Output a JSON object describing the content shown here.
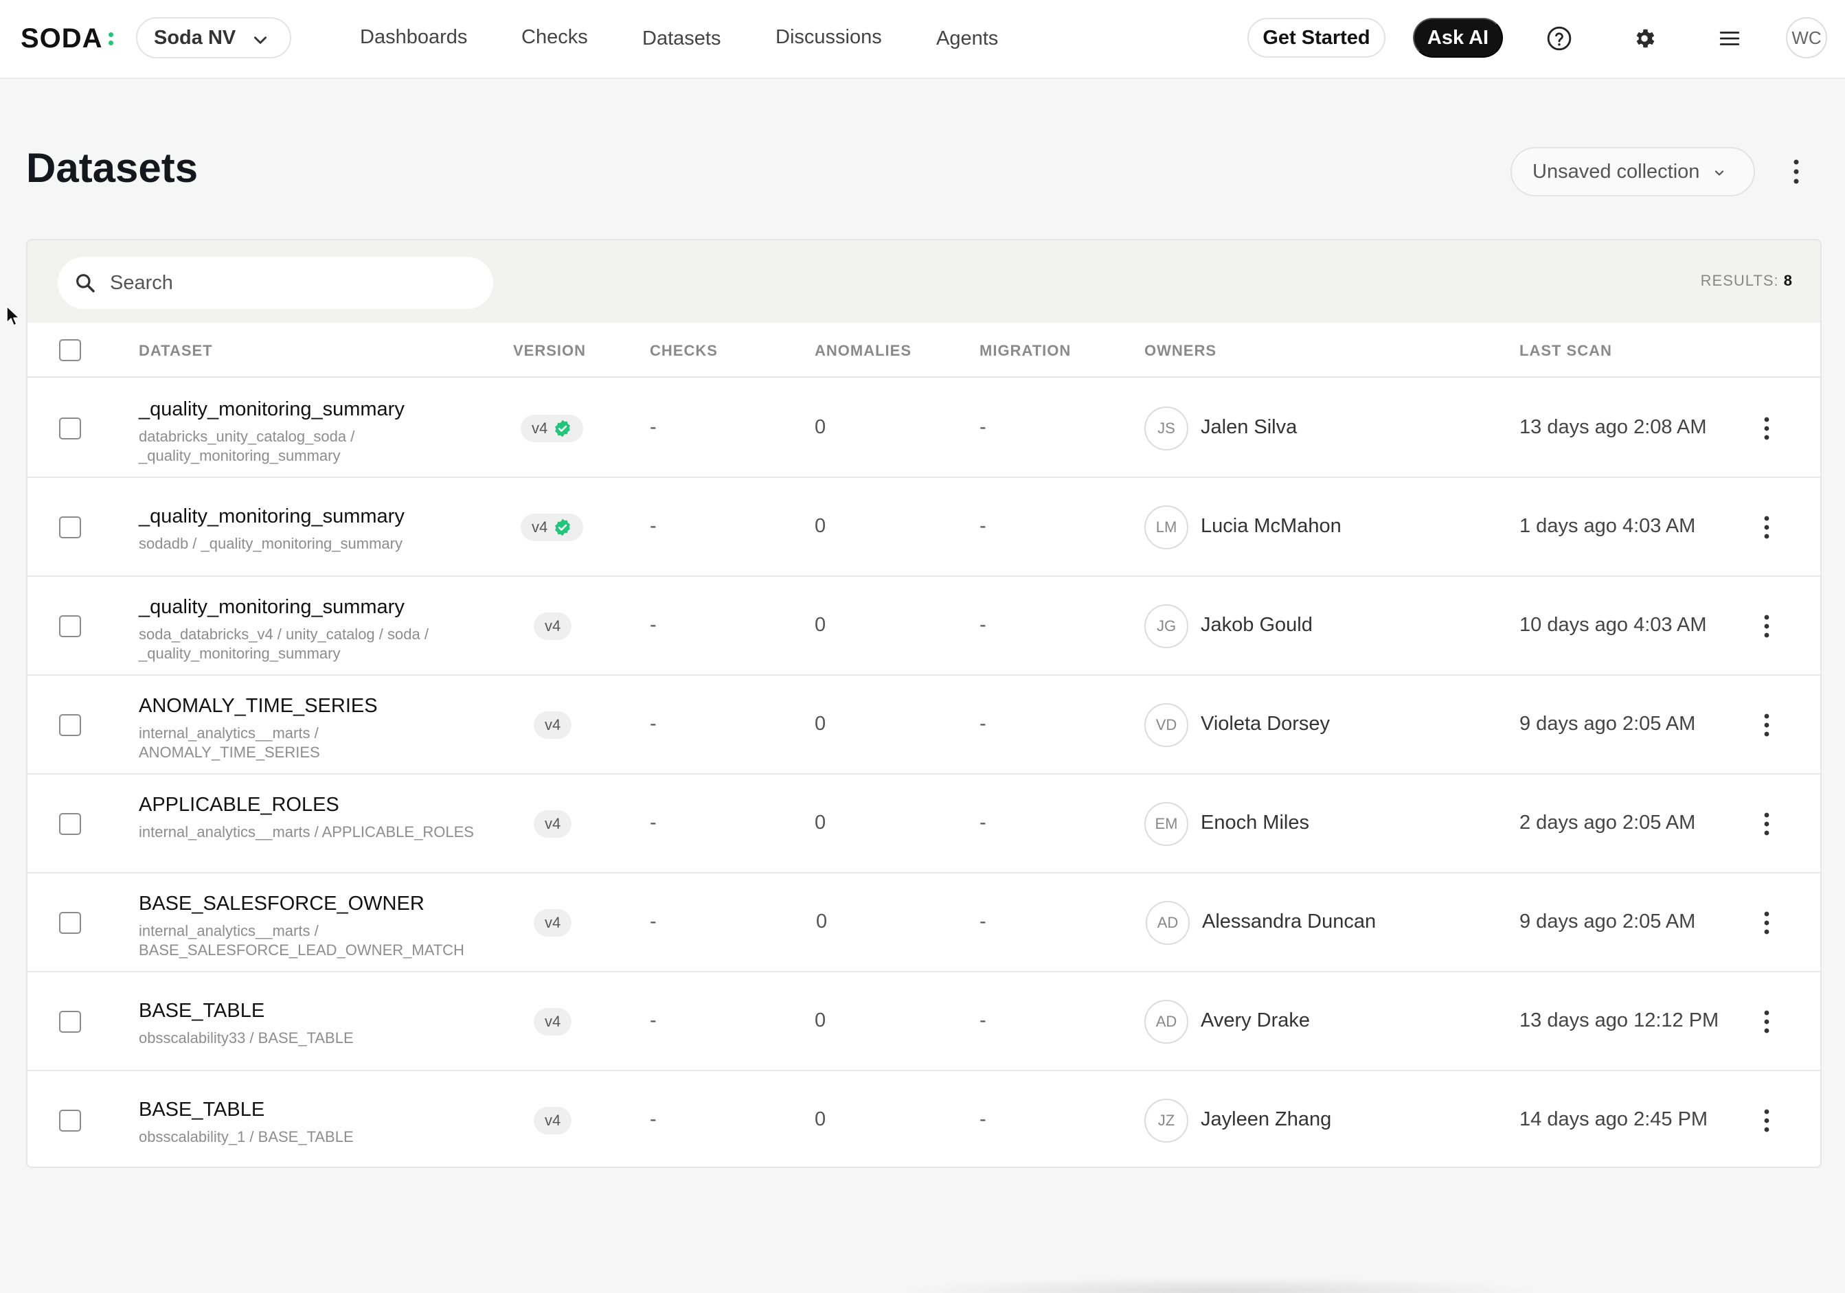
{
  "app": {
    "logo_text": "SODA",
    "org_name": "Soda NV",
    "brand_color": "#22c57a"
  },
  "nav": {
    "items": [
      {
        "label": "Dashboards"
      },
      {
        "label": "Checks"
      },
      {
        "label": "Datasets"
      },
      {
        "label": "Discussions"
      },
      {
        "label": "Agents"
      }
    ],
    "get_started": "Get Started",
    "ask_ai": "Ask AI",
    "user_initials": "WC",
    "icons": [
      "help-circle-icon",
      "gear-icon",
      "hamburger-menu-icon"
    ]
  },
  "page": {
    "title": "Datasets",
    "collection_label": "Unsaved collection"
  },
  "filter": {
    "search_placeholder": "Search",
    "results_label": "RESULTS:",
    "results_count": "8"
  },
  "table": {
    "headers": {
      "dataset": "DATASET",
      "version": "VERSION",
      "checks": "CHECKS",
      "anomalies": "ANOMALIES",
      "migration": "MIGRATION",
      "owners": "OWNERS",
      "last_scan": "LAST SCAN"
    },
    "rows": [
      {
        "name": "_quality_monitoring_summary",
        "path": "databricks_unity_catalog_soda / _quality_monitoring_summary",
        "version": "v4",
        "verified": true,
        "checks": "-",
        "anomalies": "0",
        "migration": "-",
        "owner_initials": "JS",
        "owner_name": "Jalen Silva",
        "last_scan": "13 days ago 2:08 AM"
      },
      {
        "name": "_quality_monitoring_summary",
        "path": "sodadb / _quality_monitoring_summary",
        "version": "v4",
        "verified": true,
        "checks": "-",
        "anomalies": "0",
        "migration": "-",
        "owner_initials": "LM",
        "owner_name": "Lucia McMahon",
        "last_scan": "1 days ago 4:03 AM"
      },
      {
        "name": "_quality_monitoring_summary",
        "path": "soda_databricks_v4 / unity_catalog / soda / _quality_monitoring_summary",
        "version": "v4",
        "verified": false,
        "checks": "-",
        "anomalies": "0",
        "migration": "-",
        "owner_initials": "JG",
        "owner_name": "Jakob Gould",
        "last_scan": "10 days ago 4:03 AM"
      },
      {
        "name": "ANOMALY_TIME_SERIES",
        "path": "internal_analytics__marts / ANOMALY_TIME_SERIES",
        "version": "v4",
        "verified": false,
        "checks": "-",
        "anomalies": "0",
        "migration": "-",
        "owner_initials": "VD",
        "owner_name": "Violeta Dorsey",
        "last_scan": "9 days ago 2:05 AM"
      },
      {
        "name": "APPLICABLE_ROLES",
        "path": "internal_analytics__marts / APPLICABLE_ROLES",
        "version": "v4",
        "verified": false,
        "checks": "-",
        "anomalies": "0",
        "migration": "-",
        "owner_initials": "EM",
        "owner_name": "Enoch Miles",
        "last_scan": "2 days ago 2:05 AM"
      },
      {
        "name": "BASE_SALESFORCE_OWNER",
        "path": "internal_analytics__marts / BASE_SALESFORCE_LEAD_OWNER_MATCH",
        "version": "v4",
        "verified": false,
        "checks": "-",
        "anomalies": "0",
        "migration": "-",
        "owner_initials": "AD",
        "owner_name": "Alessandra Duncan",
        "last_scan": "9 days ago 2:05 AM"
      },
      {
        "name": "BASE_TABLE",
        "path": "obsscalability33 / BASE_TABLE",
        "version": "v4",
        "verified": false,
        "checks": "-",
        "anomalies": "0",
        "migration": "-",
        "owner_initials": "AD",
        "owner_name": "Avery Drake",
        "last_scan": "13 days ago 12:12 PM"
      },
      {
        "name": "BASE_TABLE",
        "path": "obsscalability_1 / BASE_TABLE",
        "version": "v4",
        "verified": false,
        "checks": "-",
        "anomalies": "0",
        "migration": "-",
        "owner_initials": "JZ",
        "owner_name": "Jayleen Zhang",
        "last_scan": "14 days ago 2:45 PM"
      }
    ]
  }
}
